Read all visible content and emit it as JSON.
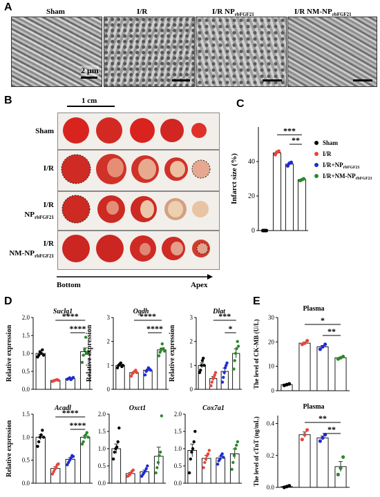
{
  "panel_letters": {
    "a": "A",
    "b": "B",
    "c": "C",
    "d": "D",
    "e": "E"
  },
  "panel_a": {
    "labels": [
      "Sham",
      "I/R",
      "I/R NP",
      "I/R NM-NP"
    ],
    "subscript": "rbFGF21",
    "scale_bar": "2 μm"
  },
  "panel_b": {
    "scale_label": "1 cm",
    "rows": [
      "Sham",
      "I/R",
      "I/R NP",
      "I/R NM-NP"
    ],
    "subscript": "rbFGF21",
    "axis_left": "Bottom",
    "axis_right": "Apex"
  },
  "colors": {
    "sham": "#000000",
    "ir": "#e8453c",
    "np": "#1f2bd6",
    "nmnp": "#2a8a2a"
  },
  "chart_data": [
    {
      "type": "bar",
      "panel": "C",
      "ylabel": "Infarct size (%)",
      "ylim": [
        0,
        60
      ],
      "yticks": [
        0,
        20,
        40
      ],
      "categories": [
        "Sham",
        "I/R",
        "I/R+NP",
        "I/R+NM-NP"
      ],
      "values": [
        0,
        45,
        38.5,
        29.5
      ],
      "points": [
        [
          0,
          0,
          0
        ],
        [
          44,
          45.5,
          46
        ],
        [
          37.5,
          39,
          39.5
        ],
        [
          29,
          29.5,
          30
        ]
      ],
      "sig": [
        "***",
        "**"
      ],
      "legend": [
        "Sham",
        "I/R",
        "I/R+NP",
        "I/R+NM-NP"
      ],
      "legend_sub": "rbFGF21"
    },
    {
      "type": "bar",
      "panel": "D",
      "title": "Suclg1",
      "ylabel": "Relative expression",
      "ylim": [
        0,
        2
      ],
      "yticks": [
        "0.0",
        "0.5",
        "1.0",
        "1.5",
        "2.0"
      ],
      "values": [
        1.0,
        0.25,
        0.3,
        1.05
      ],
      "points": [
        [
          0.9,
          0.95,
          1.05,
          1.0,
          1.1,
          0.95
        ],
        [
          0.22,
          0.24,
          0.25,
          0.26,
          0.27,
          0.25
        ],
        [
          0.28,
          0.3,
          0.32,
          0.27,
          0.3,
          0.33
        ],
        [
          0.75,
          0.95,
          1.1,
          1.45,
          1.0,
          1.05
        ]
      ],
      "sig": [
        "****",
        "****"
      ]
    },
    {
      "type": "bar",
      "panel": "D",
      "title": "Ogdh",
      "ylabel": "Relative expression",
      "ylim": [
        0,
        3
      ],
      "yticks": [
        "0",
        "1",
        "2",
        "3"
      ],
      "values": [
        1.0,
        0.7,
        0.8,
        1.65
      ],
      "points": [
        [
          0.9,
          1.0,
          1.05,
          1.1,
          0.95,
          1.0
        ],
        [
          0.55,
          0.65,
          0.7,
          0.75,
          0.8,
          0.7
        ],
        [
          0.6,
          0.75,
          0.8,
          0.9,
          0.85,
          0.8
        ],
        [
          1.4,
          1.55,
          1.65,
          1.9,
          1.7,
          1.6
        ]
      ],
      "sig": [
        "****",
        "****"
      ]
    },
    {
      "type": "bar",
      "panel": "D",
      "title": "Dlat",
      "ylabel": "Relative expression",
      "ylim": [
        0,
        3
      ],
      "yticks": [
        "0",
        "1",
        "2",
        "3"
      ],
      "values": [
        1.0,
        0.45,
        0.75,
        1.5
      ],
      "points": [
        [
          0.7,
          0.8,
          1.0,
          1.2,
          1.3,
          1.0
        ],
        [
          0.15,
          0.3,
          0.45,
          0.5,
          0.6,
          0.7
        ],
        [
          0.3,
          0.5,
          0.7,
          0.9,
          1.0,
          1.1
        ],
        [
          0.85,
          1.2,
          1.5,
          1.7,
          2.0,
          1.8
        ]
      ],
      "sig": [
        "***",
        "*"
      ]
    },
    {
      "type": "bar",
      "panel": "D",
      "title": "Acadl",
      "ylabel": "Relative expression",
      "ylim": [
        0,
        1.5
      ],
      "yticks": [
        "0.0",
        "0.5",
        "1.0",
        "1.5"
      ],
      "values": [
        1.0,
        0.32,
        0.52,
        1.0
      ],
      "points": [
        [
          0.8,
          0.9,
          1.0,
          1.05,
          1.15,
          1.0
        ],
        [
          0.2,
          0.25,
          0.3,
          0.35,
          0.4,
          0.42
        ],
        [
          0.4,
          0.45,
          0.5,
          0.55,
          0.6,
          0.58
        ],
        [
          0.85,
          0.9,
          1.0,
          1.05,
          1.1,
          1.0
        ]
      ],
      "sig": [
        "****",
        "****"
      ]
    },
    {
      "type": "bar",
      "panel": "D",
      "title": "Oxct1",
      "ylabel": "",
      "ylim": [
        0,
        2
      ],
      "yticks": [
        "0.0",
        "0.5",
        "1.0",
        "1.5",
        "2.0"
      ],
      "values": [
        1.0,
        0.28,
        0.33,
        0.78
      ],
      "points": [
        [
          0.7,
          0.9,
          1.0,
          1.05,
          1.2,
          1.6
        ],
        [
          0.2,
          0.22,
          0.25,
          0.3,
          0.35,
          0.38
        ],
        [
          0.2,
          0.25,
          0.3,
          0.35,
          0.42,
          0.5
        ],
        [
          0.3,
          0.45,
          0.6,
          0.8,
          0.9,
          1.95
        ]
      ],
      "sig": []
    },
    {
      "type": "bar",
      "panel": "D",
      "title": "Cox7a1",
      "ylabel": "",
      "ylim": [
        0,
        2
      ],
      "yticks": [
        "0.0",
        "0.5",
        "1.0",
        "1.5",
        "2.0"
      ],
      "values": [
        0.95,
        0.72,
        0.73,
        0.85
      ],
      "points": [
        [
          0.3,
          0.7,
          0.9,
          1.0,
          1.2,
          1.5
        ],
        [
          0.45,
          0.6,
          0.7,
          0.8,
          0.85,
          0.95
        ],
        [
          0.55,
          0.65,
          0.7,
          0.8,
          0.85,
          0.75
        ],
        [
          0.4,
          0.6,
          0.8,
          1.0,
          1.1,
          1.2
        ]
      ],
      "sig": []
    },
    {
      "type": "bar",
      "panel": "E",
      "title": "Plasma",
      "ylabel": "The level of CK-MB  (U/L)",
      "ylim": [
        0,
        30
      ],
      "yticks": [
        "0",
        "10",
        "20",
        "30"
      ],
      "values": [
        2.5,
        19.5,
        18,
        13.5
      ],
      "points": [
        [
          2.2,
          2.5,
          2.8
        ],
        [
          19,
          19.5,
          20.5
        ],
        [
          17,
          18,
          19
        ],
        [
          13,
          13.5,
          14
        ]
      ],
      "sig": [
        "*",
        "**"
      ]
    },
    {
      "type": "bar",
      "panel": "E",
      "title": "Plasma",
      "ylabel": "The level of cTnT  (ng/mL)",
      "ylim": [
        0,
        0.45
      ],
      "yticks": [
        "0.0",
        "0.2",
        "0.4"
      ],
      "values": [
        0.005,
        0.33,
        0.31,
        0.13
      ],
      "points": [
        [
          0.0,
          0.005,
          0.01
        ],
        [
          0.3,
          0.33,
          0.36
        ],
        [
          0.29,
          0.31,
          0.33
        ],
        [
          0.08,
          0.12,
          0.19
        ]
      ],
      "sig": [
        "**",
        "**"
      ]
    }
  ]
}
